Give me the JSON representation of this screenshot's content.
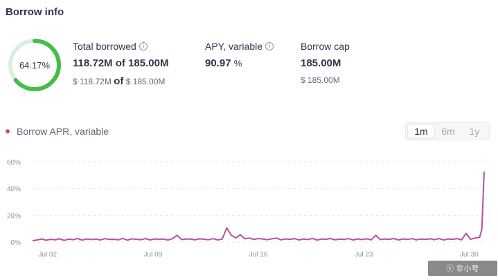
{
  "title": "Borrow info",
  "utilization": {
    "value": 64.17,
    "label": "64.17%",
    "color": "#46bc4b",
    "track_color": "#dbeee0"
  },
  "total_borrowed": {
    "label": "Total borrowed",
    "amount": "118.72M",
    "of": "of",
    "cap": "185.00M",
    "usd_amount": "$ 118.72M",
    "usd_of": "of",
    "usd_cap": "$ 185.00M"
  },
  "apy": {
    "label": "APY, variable",
    "value": "90.97",
    "unit": "%"
  },
  "borrow_cap": {
    "label": "Borrow cap",
    "value": "185.00M",
    "usd": "$ 185.00M"
  },
  "legend": {
    "label": "Borrow APR, variable",
    "color": "#b6509e"
  },
  "period": {
    "options": [
      "1m",
      "6m",
      "1y"
    ],
    "selected": "1m"
  },
  "watermark": "ⓒ 非小号",
  "chart_data": {
    "type": "line",
    "title": "Borrow APR, variable",
    "xlabel": "",
    "ylabel": "",
    "ylim": [
      0,
      60
    ],
    "yticks": [
      0,
      20,
      40,
      60
    ],
    "ytick_labels": [
      "0%",
      "20%",
      "40%",
      "60%"
    ],
    "xtick_labels": [
      "Jul 02",
      "Jul 09",
      "Jul 16",
      "Jul 23",
      "Jul 30"
    ],
    "xtick_positions": [
      1,
      8,
      15,
      22,
      29
    ],
    "xlim": [
      0,
      30
    ],
    "series": [
      {
        "name": "Borrow APR, variable",
        "color": "#b6509e",
        "x": [
          0,
          0.3,
          0.6,
          0.9,
          1.2,
          1.5,
          1.8,
          2.1,
          2.4,
          2.7,
          3,
          3.3,
          3.6,
          3.9,
          4.2,
          4.5,
          4.8,
          5.1,
          5.4,
          5.7,
          6,
          6.3,
          6.6,
          6.9,
          7.2,
          7.5,
          7.8,
          8.1,
          8.4,
          8.7,
          9,
          9.3,
          9.6,
          9.9,
          10.2,
          10.5,
          10.8,
          11.1,
          11.4,
          11.7,
          12,
          12.3,
          12.6,
          12.9,
          13.2,
          13.5,
          13.8,
          14.1,
          14.4,
          14.7,
          15,
          15.3,
          15.6,
          15.9,
          16.2,
          16.5,
          16.8,
          17.1,
          17.4,
          17.7,
          18,
          18.3,
          18.6,
          18.9,
          19.2,
          19.5,
          19.8,
          20.1,
          20.4,
          20.7,
          21,
          21.3,
          21.6,
          21.9,
          22.2,
          22.5,
          22.8,
          23.1,
          23.4,
          23.7,
          24,
          24.3,
          24.6,
          24.9,
          25.2,
          25.5,
          25.8,
          26.1,
          26.4,
          26.7,
          27,
          27.3,
          27.6,
          27.9,
          28.2,
          28.5,
          28.8,
          29.1,
          29.4,
          29.7,
          29.85,
          30
        ],
        "values": [
          1,
          1.5,
          2.2,
          1.3,
          2.0,
          1.6,
          2.4,
          1.2,
          2.1,
          1.7,
          2.6,
          1.4,
          2.3,
          1.8,
          2.2,
          1.5,
          2.5,
          1.9,
          2.0,
          1.6,
          2.7,
          1.3,
          2.4,
          2.0,
          1.7,
          2.6,
          1.5,
          2.3,
          1.9,
          2.2,
          1.4,
          2.5,
          5.0,
          1.8,
          2.3,
          2.1,
          1.6,
          2.4,
          2.0,
          1.7,
          2.5,
          1.5,
          2.2,
          10.5,
          5.0,
          3.0,
          5.5,
          2.4,
          3.0,
          1.9,
          2.6,
          2.2,
          1.7,
          2.4,
          2.9,
          1.6,
          2.3,
          2.0,
          2.5,
          1.5,
          2.2,
          1.8,
          2.7,
          1.4,
          2.3,
          2.0,
          2.6,
          1.6,
          2.1,
          1.9,
          2.5,
          1.5,
          2.3,
          1.8,
          2.4,
          1.6,
          5.0,
          1.8,
          2.2,
          2.0,
          2.6,
          1.5,
          2.3,
          1.9,
          2.5,
          1.6,
          2.2,
          1.9,
          2.4,
          1.7,
          2.6,
          1.5,
          2.2,
          2.0,
          2.5,
          1.6,
          6.5,
          2.0,
          3.0,
          3.5,
          10,
          52.5
        ]
      }
    ]
  }
}
